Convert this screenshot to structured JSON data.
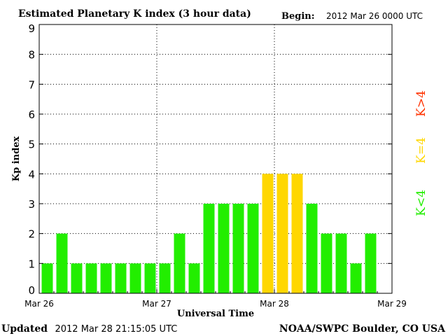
{
  "header": {
    "title": "Estimated Planetary K index (3 hour data)",
    "begin_label": "Begin:",
    "begin_value": "2012 Mar 26 0000 UTC"
  },
  "footer": {
    "updated_label": "Updated",
    "updated_value": "2012 Mar 28 21:15:05 UTC",
    "source": "NOAA/SWPC Boulder, CO USA"
  },
  "legend": [
    {
      "label": "K>4",
      "color": "#ff3300"
    },
    {
      "label": "K=4",
      "color": "#ffd700"
    },
    {
      "label": "K<4",
      "color": "#22ee00"
    }
  ],
  "chart_data": {
    "type": "bar",
    "title": "Estimated Planetary K index (3 hour data)",
    "xlabel": "Universal Time",
    "ylabel": "Kp index",
    "ylim": [
      0,
      9
    ],
    "yticks": [
      0,
      1,
      2,
      3,
      4,
      5,
      6,
      7,
      8,
      9
    ],
    "xtick_labels": [
      "Mar 26",
      "Mar 27",
      "Mar 28",
      "Mar 29"
    ],
    "bars_per_day": 8,
    "grid": true,
    "legend_position": "right",
    "values": [
      1,
      2,
      1,
      1,
      1,
      1,
      1,
      1,
      1,
      2,
      1,
      3,
      3,
      3,
      3,
      4,
      4,
      4,
      3,
      2,
      2,
      1,
      2
    ],
    "colors": {
      "below4": "#22ee00",
      "equal4": "#ffd700",
      "above4": "#ff3300"
    }
  }
}
